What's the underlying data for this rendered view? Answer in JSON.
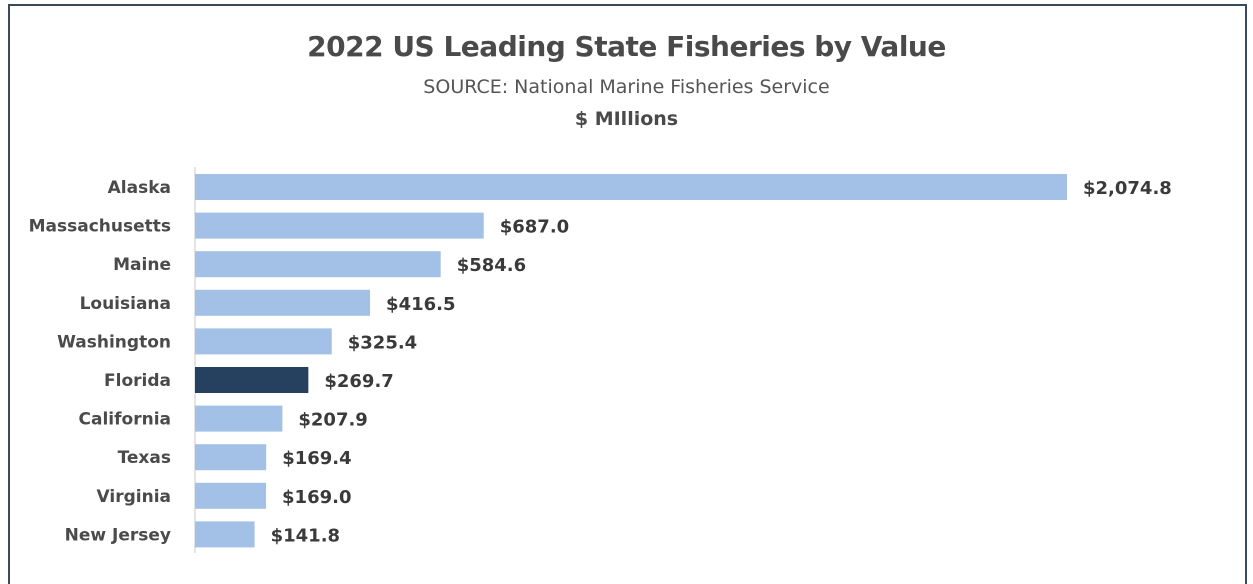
{
  "chart_data": {
    "type": "bar",
    "orientation": "horizontal",
    "title": "2022 US Leading State Fisheries by Value",
    "subtitle": "SOURCE: National Marine Fisheries Service",
    "unit_label": "$ MIllions",
    "categories": [
      "Alaska",
      "Massachusetts",
      "Maine",
      "Louisiana",
      "Washington",
      "Florida",
      "California",
      "Texas",
      "Virginia",
      "New Jersey"
    ],
    "values": [
      2074.8,
      687.0,
      584.6,
      416.5,
      325.4,
      269.7,
      207.9,
      169.4,
      169.0,
      141.8
    ],
    "value_labels": [
      "$2,074.8",
      "$687.0",
      "$584.6",
      "$416.5",
      "$325.4",
      "$269.7",
      "$207.9",
      "$169.4",
      "$169.0",
      "$141.8"
    ],
    "highlight": "Florida",
    "xlim": [
      0,
      2074.8
    ],
    "grid": false,
    "legend": "none",
    "colors": {
      "bar": "#a3c0e6",
      "highlight": "#26405f",
      "axis": "#c8c8c8"
    }
  }
}
